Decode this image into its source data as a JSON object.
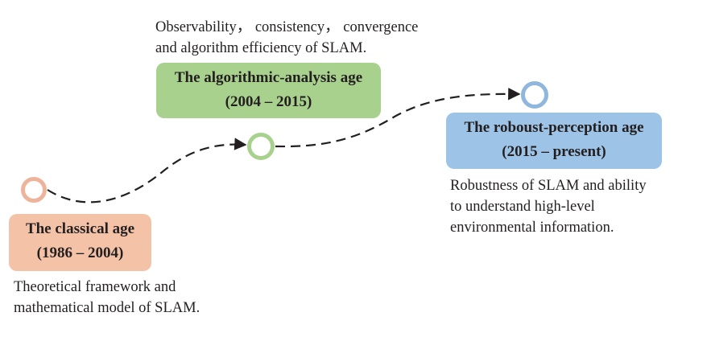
{
  "colors": {
    "classical": "#f4c3a7",
    "classical_ring": "#eeb49b",
    "algorithmic": "#a9d18e",
    "algorithmic_ring": "#a9d18e",
    "robust": "#9dc3e6",
    "robust_ring": "#8fb6dc",
    "connector": "#231f20"
  },
  "eras": {
    "classical": {
      "title": "The classical age",
      "period": "(1986 – 2004)",
      "description": "Theoretical framework and\nmathematical model of SLAM."
    },
    "algorithmic": {
      "title": "The algorithmic-analysis age",
      "period": "(2004 – 2015)",
      "description": "Observability， consistency， convergence\nand algorithm efficiency of SLAM."
    },
    "robust": {
      "title": "The roboust-perception age",
      "period": "(2015 – present)",
      "description": "Robustness of SLAM and ability\nto understand high-level\nenvironmental information."
    }
  }
}
